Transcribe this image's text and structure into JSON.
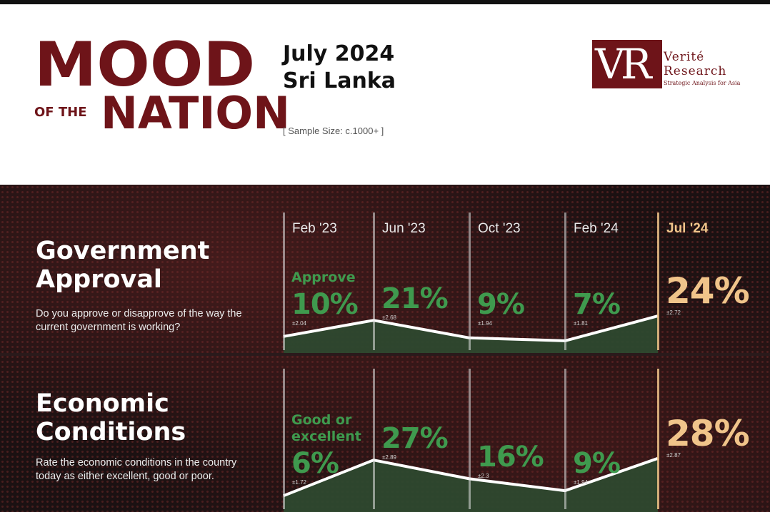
{
  "header": {
    "title_mood": "MOOD",
    "title_ofthe": "OF THE",
    "title_nation": "NATION",
    "date": "July 2024",
    "country": "Sri Lanka",
    "sample": "[ Sample Size: c.1000+ ]"
  },
  "logo": {
    "mark": "VR",
    "line1": "Verité",
    "line2": "Research",
    "tagline": "Strategic Analysis for Asia"
  },
  "colors": {
    "brand": "#6e1419",
    "green": "#3f9a4e",
    "highlight": "#f0c48a",
    "area_fill": "#2e4a30",
    "panel_bg": "#1b1112"
  },
  "chart_data": [
    {
      "type": "area",
      "title": "Government Approval",
      "question": "Do you approve or disapprove of the way the current government is working?",
      "category_label": "Approve",
      "x": [
        "Feb '23",
        "Jun '23",
        "Oct '23",
        "Feb '24",
        "Jul '24"
      ],
      "values": [
        10,
        21,
        9,
        7,
        24
      ],
      "value_labels": [
        "10%",
        "21%",
        "9%",
        "7%",
        "24%"
      ],
      "margins": [
        "±2.04",
        "±2.68",
        "±1.94",
        "±1.81",
        "±2.72"
      ],
      "highlight_index": 4
    },
    {
      "type": "area",
      "title": "Economic Conditions",
      "question": "Rate the economic conditions in the country today as either excellent, good or poor.",
      "category_label": "Good or excellent",
      "x": [
        "Feb '23",
        "Jun '23",
        "Oct '23",
        "Feb '24",
        "Jul '24"
      ],
      "values": [
        6,
        27,
        16,
        9,
        28
      ],
      "value_labels": [
        "6%",
        "27%",
        "16%",
        "9%",
        "28%"
      ],
      "margins": [
        "±1.72",
        "±2.89",
        "±2.3",
        "±1.94",
        "±2.87"
      ],
      "highlight_index": 4
    }
  ]
}
